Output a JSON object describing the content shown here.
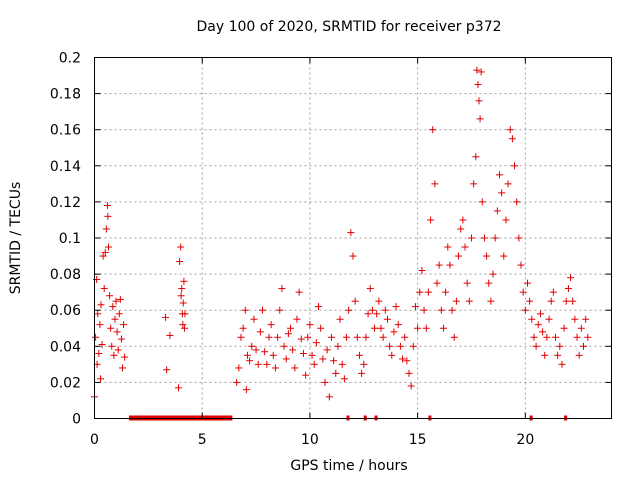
{
  "chart_data": {
    "type": "scatter",
    "title": "Day 100 of 2020, SRMTID for receiver p372",
    "xlabel": "GPS time / hours",
    "ylabel": "SRMTID / TECUs",
    "xlim": [
      0,
      24
    ],
    "ylim": [
      0,
      0.2
    ],
    "xticks": [
      0,
      5,
      10,
      15,
      20
    ],
    "xtick_labels": [
      "0",
      "5",
      "10",
      "15",
      "20"
    ],
    "yticks": [
      0,
      0.02,
      0.04,
      0.06,
      0.08,
      0.1,
      0.12,
      0.14,
      0.16,
      0.18,
      0.2
    ],
    "ytick_labels": [
      "0",
      "0.02",
      "0.04",
      "0.06",
      "0.08",
      "0.1",
      "0.12",
      "0.14",
      "0.16",
      "0.18",
      "0.2"
    ],
    "grid": true,
    "marker": "+",
    "color": "#e00000",
    "zero_value_ranges_hours": [
      [
        1.6,
        6.4
      ],
      [
        11.7,
        11.8
      ],
      [
        12.5,
        12.6
      ],
      [
        13.0,
        13.1
      ],
      [
        15.5,
        15.6
      ],
      [
        20.2,
        20.3
      ],
      [
        21.8,
        21.9
      ]
    ],
    "series": [
      {
        "name": "SRMTID",
        "points": [
          [
            0.0,
            0.012
          ],
          [
            0.05,
            0.045
          ],
          [
            0.1,
            0.077
          ],
          [
            0.12,
            0.03
          ],
          [
            0.15,
            0.058
          ],
          [
            0.2,
            0.036
          ],
          [
            0.25,
            0.052
          ],
          [
            0.28,
            0.022
          ],
          [
            0.3,
            0.063
          ],
          [
            0.35,
            0.041
          ],
          [
            0.4,
            0.09
          ],
          [
            0.45,
            0.072
          ],
          [
            0.5,
            0.092
          ],
          [
            0.55,
            0.105
          ],
          [
            0.6,
            0.118
          ],
          [
            0.62,
            0.112
          ],
          [
            0.65,
            0.095
          ],
          [
            0.7,
            0.068
          ],
          [
            0.75,
            0.05
          ],
          [
            0.8,
            0.04
          ],
          [
            0.85,
            0.062
          ],
          [
            0.9,
            0.035
          ],
          [
            0.95,
            0.055
          ],
          [
            1.0,
            0.065
          ],
          [
            1.05,
            0.048
          ],
          [
            1.1,
            0.038
          ],
          [
            1.15,
            0.058
          ],
          [
            1.2,
            0.066
          ],
          [
            1.25,
            0.044
          ],
          [
            1.3,
            0.028
          ],
          [
            1.35,
            0.052
          ],
          [
            1.4,
            0.034
          ],
          [
            3.3,
            0.056
          ],
          [
            3.35,
            0.027
          ],
          [
            3.5,
            0.046
          ],
          [
            3.9,
            0.017
          ],
          [
            3.95,
            0.087
          ],
          [
            4.0,
            0.095
          ],
          [
            4.02,
            0.068
          ],
          [
            4.05,
            0.072
          ],
          [
            4.08,
            0.058
          ],
          [
            4.1,
            0.052
          ],
          [
            4.12,
            0.064
          ],
          [
            4.15,
            0.076
          ],
          [
            4.18,
            0.05
          ],
          [
            4.2,
            0.058
          ],
          [
            6.6,
            0.02
          ],
          [
            6.7,
            0.028
          ],
          [
            6.8,
            0.045
          ],
          [
            6.9,
            0.05
          ],
          [
            7.0,
            0.06
          ],
          [
            7.05,
            0.016
          ],
          [
            7.1,
            0.035
          ],
          [
            7.2,
            0.032
          ],
          [
            7.3,
            0.04
          ],
          [
            7.4,
            0.055
          ],
          [
            7.5,
            0.038
          ],
          [
            7.6,
            0.03
          ],
          [
            7.7,
            0.048
          ],
          [
            7.8,
            0.06
          ],
          [
            7.9,
            0.037
          ],
          [
            8.0,
            0.03
          ],
          [
            8.1,
            0.045
          ],
          [
            8.2,
            0.052
          ],
          [
            8.3,
            0.035
          ],
          [
            8.4,
            0.028
          ],
          [
            8.5,
            0.045
          ],
          [
            8.6,
            0.06
          ],
          [
            8.7,
            0.072
          ],
          [
            8.8,
            0.04
          ],
          [
            8.9,
            0.033
          ],
          [
            9.0,
            0.047
          ],
          [
            9.1,
            0.05
          ],
          [
            9.2,
            0.038
          ],
          [
            9.3,
            0.028
          ],
          [
            9.4,
            0.055
          ],
          [
            9.5,
            0.07
          ],
          [
            9.6,
            0.044
          ],
          [
            9.7,
            0.036
          ],
          [
            9.8,
            0.024
          ],
          [
            9.9,
            0.045
          ],
          [
            10.0,
            0.052
          ],
          [
            10.1,
            0.035
          ],
          [
            10.2,
            0.03
          ],
          [
            10.3,
            0.042
          ],
          [
            10.4,
            0.062
          ],
          [
            10.5,
            0.05
          ],
          [
            10.6,
            0.033
          ],
          [
            10.7,
            0.02
          ],
          [
            10.8,
            0.038
          ],
          [
            10.9,
            0.012
          ],
          [
            11.0,
            0.045
          ],
          [
            11.1,
            0.032
          ],
          [
            11.2,
            0.025
          ],
          [
            11.3,
            0.04
          ],
          [
            11.4,
            0.055
          ],
          [
            11.5,
            0.03
          ],
          [
            11.6,
            0.022
          ],
          [
            11.7,
            0.045
          ],
          [
            11.8,
            0.06
          ],
          [
            11.9,
            0.103
          ],
          [
            12.0,
            0.09
          ],
          [
            12.1,
            0.065
          ],
          [
            12.2,
            0.045
          ],
          [
            12.3,
            0.035
          ],
          [
            12.4,
            0.025
          ],
          [
            12.5,
            0.03
          ],
          [
            12.6,
            0.045
          ],
          [
            12.7,
            0.058
          ],
          [
            12.8,
            0.072
          ],
          [
            12.9,
            0.06
          ],
          [
            13.0,
            0.05
          ],
          [
            13.1,
            0.058
          ],
          [
            13.2,
            0.065
          ],
          [
            13.3,
            0.05
          ],
          [
            13.4,
            0.045
          ],
          [
            13.5,
            0.06
          ],
          [
            13.6,
            0.055
          ],
          [
            13.7,
            0.04
          ],
          [
            13.8,
            0.035
          ],
          [
            13.9,
            0.048
          ],
          [
            14.0,
            0.062
          ],
          [
            14.1,
            0.052
          ],
          [
            14.2,
            0.04
          ],
          [
            14.3,
            0.033
          ],
          [
            14.4,
            0.045
          ],
          [
            14.5,
            0.032
          ],
          [
            14.6,
            0.025
          ],
          [
            14.7,
            0.018
          ],
          [
            14.8,
            0.04
          ],
          [
            14.9,
            0.062
          ],
          [
            15.0,
            0.05
          ],
          [
            15.1,
            0.07
          ],
          [
            15.2,
            0.082
          ],
          [
            15.3,
            0.06
          ],
          [
            15.4,
            0.05
          ],
          [
            15.5,
            0.07
          ],
          [
            15.6,
            0.11
          ],
          [
            15.7,
            0.16
          ],
          [
            15.8,
            0.13
          ],
          [
            15.9,
            0.075
          ],
          [
            16.0,
            0.085
          ],
          [
            16.1,
            0.06
          ],
          [
            16.2,
            0.05
          ],
          [
            16.3,
            0.07
          ],
          [
            16.4,
            0.095
          ],
          [
            16.5,
            0.085
          ],
          [
            16.6,
            0.06
          ],
          [
            16.7,
            0.045
          ],
          [
            16.8,
            0.065
          ],
          [
            16.9,
            0.09
          ],
          [
            17.0,
            0.105
          ],
          [
            17.1,
            0.11
          ],
          [
            17.2,
            0.095
          ],
          [
            17.3,
            0.075
          ],
          [
            17.4,
            0.065
          ],
          [
            17.5,
            0.1
          ],
          [
            17.6,
            0.13
          ],
          [
            17.7,
            0.145
          ],
          [
            17.75,
            0.193
          ],
          [
            17.8,
            0.185
          ],
          [
            17.85,
            0.176
          ],
          [
            17.9,
            0.166
          ],
          [
            17.95,
            0.192
          ],
          [
            18.0,
            0.12
          ],
          [
            18.1,
            0.1
          ],
          [
            18.2,
            0.09
          ],
          [
            18.3,
            0.075
          ],
          [
            18.4,
            0.065
          ],
          [
            18.5,
            0.08
          ],
          [
            18.6,
            0.1
          ],
          [
            18.7,
            0.115
          ],
          [
            18.8,
            0.135
          ],
          [
            18.9,
            0.125
          ],
          [
            19.0,
            0.09
          ],
          [
            19.1,
            0.11
          ],
          [
            19.2,
            0.13
          ],
          [
            19.3,
            0.16
          ],
          [
            19.4,
            0.155
          ],
          [
            19.5,
            0.14
          ],
          [
            19.6,
            0.12
          ],
          [
            19.7,
            0.1
          ],
          [
            19.8,
            0.085
          ],
          [
            19.9,
            0.07
          ],
          [
            20.0,
            0.06
          ],
          [
            20.1,
            0.075
          ],
          [
            20.2,
            0.065
          ],
          [
            20.3,
            0.055
          ],
          [
            20.4,
            0.045
          ],
          [
            20.5,
            0.04
          ],
          [
            20.6,
            0.052
          ],
          [
            20.7,
            0.058
          ],
          [
            20.8,
            0.048
          ],
          [
            20.9,
            0.035
          ],
          [
            21.0,
            0.045
          ],
          [
            21.1,
            0.055
          ],
          [
            21.2,
            0.065
          ],
          [
            21.3,
            0.07
          ],
          [
            21.4,
            0.045
          ],
          [
            21.5,
            0.035
          ],
          [
            21.6,
            0.04
          ],
          [
            21.7,
            0.03
          ],
          [
            21.8,
            0.05
          ],
          [
            21.9,
            0.065
          ],
          [
            22.0,
            0.072
          ],
          [
            22.1,
            0.078
          ],
          [
            22.2,
            0.065
          ],
          [
            22.3,
            0.055
          ],
          [
            22.4,
            0.045
          ],
          [
            22.5,
            0.035
          ],
          [
            22.6,
            0.05
          ],
          [
            22.7,
            0.04
          ],
          [
            22.8,
            0.055
          ],
          [
            22.9,
            0.045
          ]
        ]
      }
    ]
  }
}
